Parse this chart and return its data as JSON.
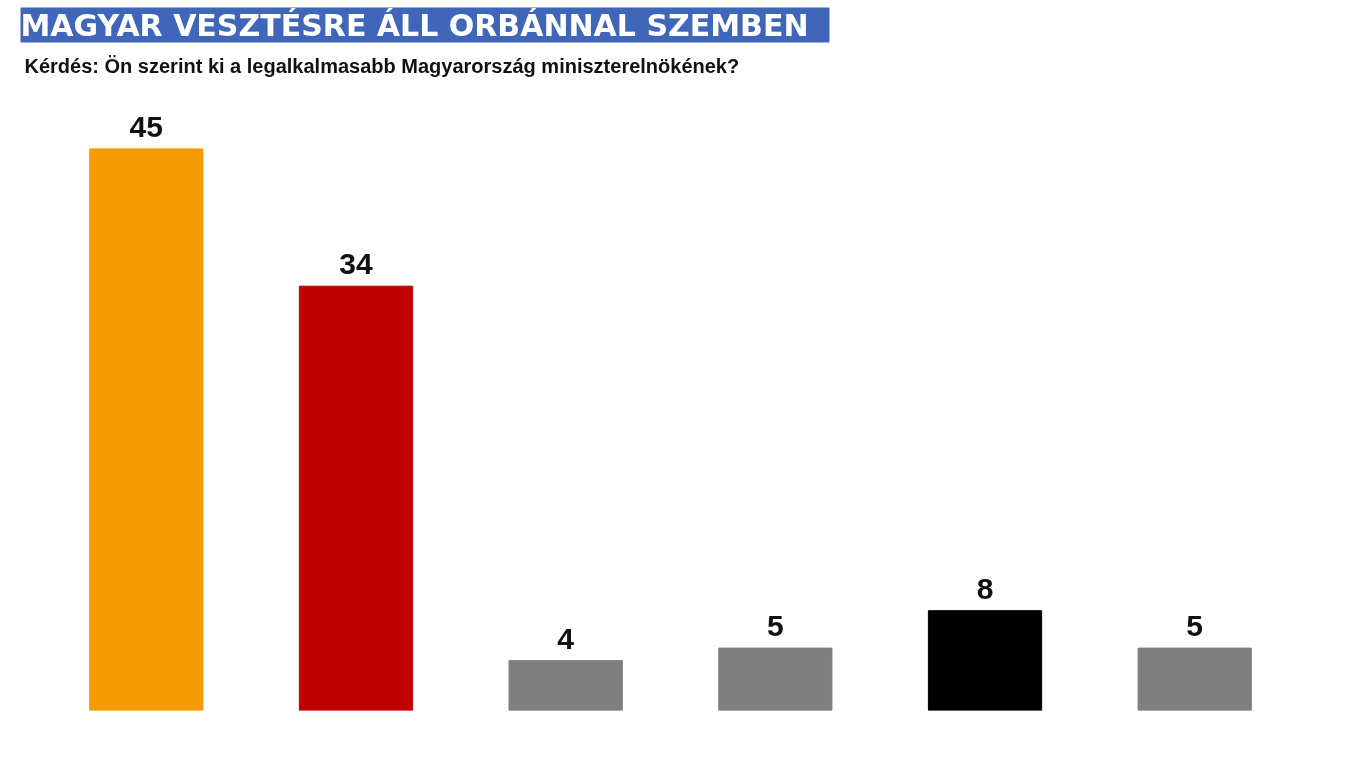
{
  "chart_data": {
    "type": "bar",
    "title": "MAGYAR VESZTÉSRE ÁLL ORBÁNNAL SZEMBEN",
    "subtitle": "Kérdés: Ön szerint ki a legalkalmasabb Magyarország miniszterelnökének?",
    "categories": [
      null,
      null,
      null,
      null,
      null,
      null
    ],
    "values": [
      45,
      34,
      4,
      5,
      8,
      5
    ],
    "colors": [
      "#f59a00",
      "#c00000",
      "#7f7f7f",
      "#7f7f7f",
      "#000000",
      "#7f7f7f"
    ],
    "data_labels": true
  }
}
